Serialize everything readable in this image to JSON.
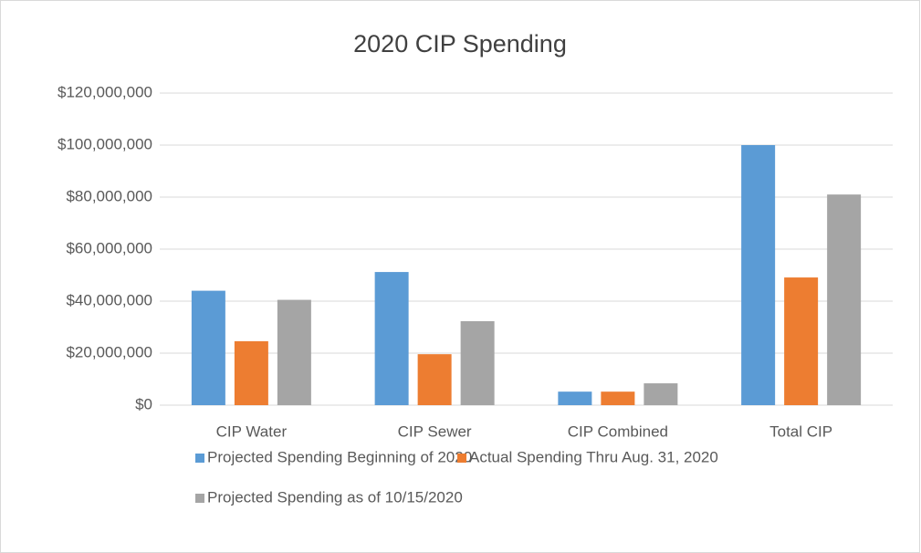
{
  "chart_data": {
    "type": "bar",
    "title": "2020 CIP Spending",
    "categories": [
      "CIP Water",
      "CIP Sewer",
      "CIP Combined",
      "Total CIP"
    ],
    "series": [
      {
        "name": "Projected Spending Beginning of 2020",
        "color": "#5b9bd5",
        "values": [
          44000000,
          51200000,
          5200000,
          100000000
        ]
      },
      {
        "name": "Actual Spending Thru Aug. 31, 2020",
        "color": "#ed7d31",
        "values": [
          24600000,
          19600000,
          5200000,
          49100000
        ]
      },
      {
        "name": "Projected Spending as of 10/15/2020",
        "color": "#a5a5a5",
        "values": [
          40500000,
          32300000,
          8400000,
          81000000
        ]
      }
    ],
    "ylim": [
      0,
      120000000
    ],
    "yticks": [
      {
        "value": 0,
        "label": "$0"
      },
      {
        "value": 20000000,
        "label": "$20,000,000"
      },
      {
        "value": 40000000,
        "label": "$40,000,000"
      },
      {
        "value": 60000000,
        "label": "$60,000,000"
      },
      {
        "value": 80000000,
        "label": "$80,000,000"
      },
      {
        "value": 100000000,
        "label": "$100,000,000"
      },
      {
        "value": 120000000,
        "label": "$120,000,000"
      }
    ],
    "grid": true,
    "legend": "bottom"
  }
}
